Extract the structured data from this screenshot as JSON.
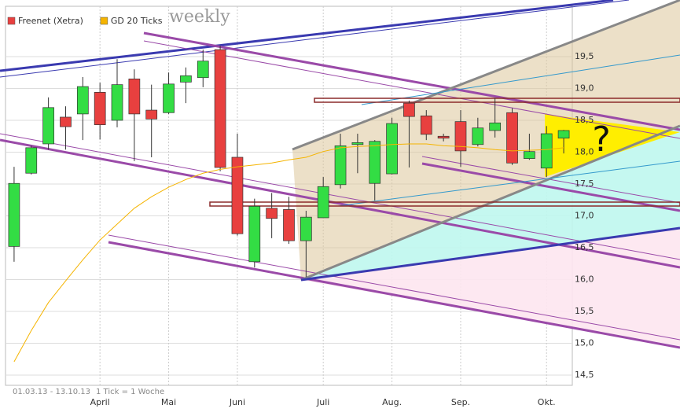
{
  "chart_data": {
    "type": "candlestick",
    "title": "weekly",
    "date_range": "01.03.13 - 13.10.13",
    "note": "1 Tick = 1 Woche",
    "annotation": "?",
    "categories": [
      null,
      null,
      null,
      null,
      null,
      "April",
      null,
      null,
      null,
      "Mai",
      null,
      null,
      null,
      "Juni",
      null,
      null,
      null,
      null,
      "Juli",
      null,
      null,
      null,
      "Aug.",
      null,
      null,
      null,
      "Sep.",
      null,
      null,
      null,
      null,
      "Okt.",
      null
    ],
    "ylim": [
      14.34,
      20.29
    ],
    "yticks": [
      {
        "value": 14.5,
        "label": "14,5"
      },
      {
        "value": 15,
        "label": "15,0"
      },
      {
        "value": 15.5,
        "label": "15,5"
      },
      {
        "value": 16,
        "label": "16,0"
      },
      {
        "value": 16.5,
        "label": "16,5"
      },
      {
        "value": 17,
        "label": "17,0"
      },
      {
        "value": 17.5,
        "label": "17,5"
      },
      {
        "value": 18,
        "label": "18,0"
      },
      {
        "value": 18.5,
        "label": "18,5"
      },
      {
        "value": 19,
        "label": "19,0"
      },
      {
        "value": 19.5,
        "label": "19,5"
      }
    ],
    "grid": true,
    "series": [
      {
        "name": "Freenet (Xetra)",
        "type": "candlestick",
        "color": "#e8403f",
        "up_color": "#33dd44",
        "down_color": "#e8403f",
        "open": [
          16.52,
          17.67,
          18.13,
          18.55,
          18.6,
          18.94,
          18.5,
          19.15,
          18.66,
          18.62,
          19.1,
          19.17,
          19.61,
          17.92,
          16.28,
          17.12,
          17.1,
          16.61,
          16.97,
          17.49,
          18.12,
          17.51,
          17.66,
          18.77,
          18.57,
          18.25,
          18.48,
          18.12,
          18.34,
          18.62,
          17.9,
          17.75,
          18.22
        ],
        "high": [
          17.77,
          18.1,
          18.86,
          18.72,
          19.18,
          19.09,
          19.46,
          19.3,
          19.06,
          19.25,
          19.33,
          19.61,
          19.67,
          18.29,
          17.27,
          17.36,
          17.3,
          17.08,
          17.61,
          18.29,
          18.29,
          18.19,
          18.54,
          18.81,
          18.66,
          18.29,
          18.66,
          18.54,
          18.85,
          18.69,
          18.29,
          18.41,
          18.35
        ],
        "low": [
          16.28,
          17.65,
          18.04,
          18.04,
          18.19,
          18.2,
          18.39,
          17.86,
          17.92,
          18.6,
          18.77,
          19.02,
          17.7,
          16.69,
          16.19,
          16.65,
          16.56,
          16.04,
          16.97,
          17.43,
          17.67,
          17.24,
          17.65,
          17.76,
          18.19,
          18.17,
          17.77,
          18.09,
          18.23,
          17.8,
          17.88,
          17.61,
          17.98
        ],
        "close": [
          17.51,
          18.07,
          18.7,
          18.4,
          19.03,
          18.43,
          19.06,
          18.6,
          18.52,
          19.07,
          19.2,
          19.43,
          17.76,
          16.72,
          17.15,
          16.96,
          16.61,
          16.98,
          17.46,
          18.1,
          18.15,
          18.17,
          18.45,
          18.56,
          18.28,
          18.22,
          18.02,
          18.38,
          18.46,
          17.83,
          18.01,
          18.29,
          18.34
        ]
      },
      {
        "name": "GD 20 Ticks",
        "type": "line",
        "color": "#f5b400",
        "values": [
          14.71,
          15.2,
          15.64,
          15.98,
          16.31,
          16.62,
          16.87,
          17.12,
          17.3,
          17.45,
          17.57,
          17.67,
          17.73,
          17.77,
          17.8,
          17.83,
          17.88,
          17.92,
          18.01,
          18.07,
          18.09,
          18.1,
          18.12,
          18.13,
          18.13,
          18.1,
          18.09,
          18.07,
          18.04,
          18.02,
          18.03,
          18.04,
          18.07
        ]
      }
    ]
  }
}
